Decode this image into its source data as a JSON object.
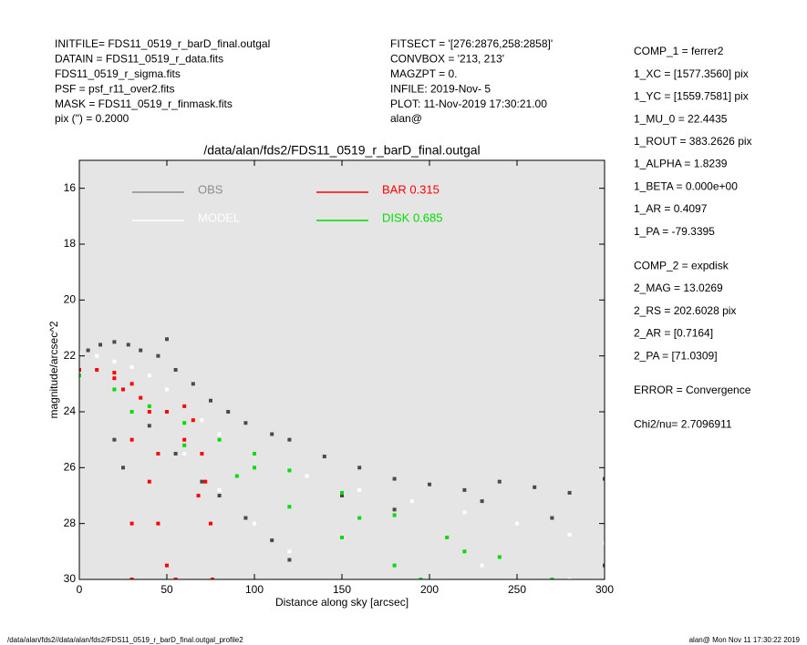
{
  "header": {
    "left": [
      "INITFILE= FDS11_0519_r_barD_final.outgal",
      "DATAIN  = FDS11_0519_r_data.fits",
      "FDS11_0519_r_sigma.fits",
      "PSF     = psf_r11_over2.fits",
      "MASK    = FDS11_0519_r_finmask.fits",
      "pix (\") =  0.2000"
    ],
    "middle": [
      "FITSECT = '[276:2876,258:2858]'",
      "CONVBOX = '213, 213'",
      "MAGZPT  =              0.",
      "INFILE: 2019-Nov- 5",
      "PLOT: 11-Nov-2019 17:30:21.00",
      "alan@"
    ]
  },
  "parameters": [
    [
      "COMP_1  = ferrer2",
      "1_XC    = [1577.3560] pix",
      "1_YC    = [1559.7581] pix",
      "1_MU_0  = 22.4435",
      "1_ROUT  = 383.2626 pix",
      "1_ALPHA  = 1.8239",
      "1_BETA  = 0.000e+00",
      "1_AR    = 0.4097",
      "1_PA    = -79.3395"
    ],
    [
      "COMP_2  = expdisk",
      "2_MAG   = 13.0269",
      "2_RS    = 202.6028 pix",
      "2_AR    = [0.7164]",
      "2_PA    = [71.0309]"
    ],
    [
      "ERROR   = Convergence"
    ],
    [
      "Chi2/nu=      2.7096911"
    ]
  ],
  "footer": {
    "left": "/data/alan/fds2//data/alan/fds2/FDS11_0519_r_barD_final.outgal_profile2",
    "right": "alan@  Mon Nov 11 17:30:22 2019"
  },
  "chart_data": {
    "type": "scatter",
    "title": "/data/alan/fds2/FDS11_0519_r_barD_final.outgal",
    "x_label": "Distance along sky [arcsec]",
    "y_label": "magnitude/arcsec^2",
    "xlim": [
      0,
      300
    ],
    "xticks": [
      0,
      50,
      100,
      150,
      200,
      250,
      300
    ],
    "ylim": [
      15,
      30
    ],
    "y_inverted": true,
    "yticks": [
      16,
      18,
      20,
      22,
      24,
      26,
      28,
      30
    ],
    "background": "#e5e5e5",
    "series": [
      {
        "name": "OBS",
        "color": "#4a4a4a",
        "legend_color": "#8c8c8c",
        "x": [
          5,
          12,
          20,
          28,
          35,
          45,
          50,
          55,
          65,
          75,
          85,
          95,
          110,
          120,
          140,
          160,
          180,
          200,
          220,
          240,
          260,
          280,
          300,
          20,
          25,
          40,
          55,
          70,
          80,
          95,
          110,
          120,
          150,
          180,
          230,
          270,
          300
        ],
        "y": [
          21.8,
          21.6,
          21.5,
          21.6,
          21.8,
          22.0,
          21.4,
          22.5,
          23.0,
          23.6,
          24.0,
          24.4,
          24.8,
          25.0,
          25.6,
          26.0,
          26.4,
          26.6,
          26.8,
          26.5,
          26.7,
          26.9,
          26.4,
          25.0,
          26.0,
          24.5,
          25.5,
          26.5,
          27.0,
          27.8,
          28.6,
          29.3,
          27.0,
          27.5,
          27.2,
          27.8,
          29.5
        ]
      },
      {
        "name": "MODEL",
        "color": "#ffffff",
        "legend_color": "#ffffff",
        "x": [
          0,
          10,
          20,
          30,
          40,
          50,
          60,
          70,
          80,
          100,
          130,
          160,
          190,
          220,
          250,
          280,
          300,
          60,
          80,
          100,
          120,
          230,
          280
        ],
        "y": [
          21.9,
          22.0,
          22.2,
          22.4,
          22.7,
          23.2,
          23.8,
          24.3,
          24.8,
          25.5,
          26.3,
          26.8,
          27.2,
          27.6,
          28.0,
          28.4,
          28.7,
          25.5,
          26.8,
          28.0,
          29.0,
          29.5,
          30.0
        ]
      },
      {
        "name": "BAR  0.315",
        "color": "#ff0000",
        "legend_color": "#ff0000",
        "x": [
          0,
          10,
          20,
          30,
          35,
          40,
          50,
          60,
          65,
          70,
          72,
          75,
          76,
          30,
          30,
          30,
          40,
          45,
          50,
          55,
          20,
          25,
          45,
          60,
          68
        ],
        "y": [
          22.5,
          22.5,
          22.6,
          23.0,
          23.5,
          24.0,
          24.0,
          23.8,
          24.3,
          25.5,
          26.5,
          28,
          30,
          25,
          28,
          30,
          26.5,
          28,
          29.5,
          30,
          22.8,
          23.2,
          25.5,
          25.0,
          27
        ]
      },
      {
        "name": "DISK  0.685",
        "color": "#00dd00",
        "legend_color": "#00dd00",
        "x": [
          0,
          20,
          40,
          60,
          80,
          100,
          120,
          150,
          180,
          210,
          240,
          270,
          30,
          60,
          90,
          120,
          150,
          180,
          195,
          100,
          160,
          220
        ],
        "y": [
          22.7,
          23.2,
          23.8,
          24.4,
          25.0,
          25.5,
          26.1,
          26.9,
          27.7,
          28.5,
          29.2,
          30,
          24.0,
          25.2,
          26.3,
          27.4,
          28.5,
          29.5,
          30,
          26.0,
          27.8,
          29.0
        ]
      }
    ]
  }
}
